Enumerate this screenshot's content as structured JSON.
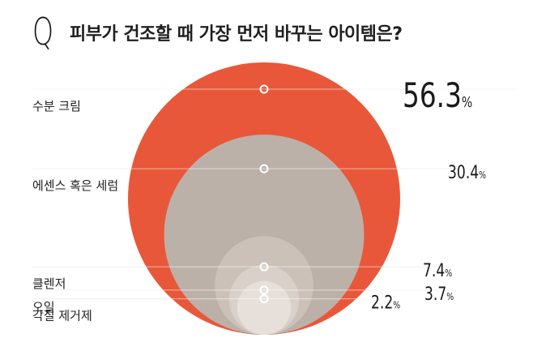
{
  "header": {
    "q_letter": "Q",
    "question": "피부가 건조할 때 가장 먼저 바꾸는 아이템은?"
  },
  "chart_data": {
    "type": "bubble",
    "categories": [
      "수분 크림",
      "에센스 혹은 세럼",
      "클렌저",
      "오일",
      "각질 제거제"
    ],
    "values": [
      56.3,
      30.4,
      7.4,
      3.7,
      2.2
    ],
    "value_suffix": "%",
    "colors": [
      "#e9573a",
      "#bcb1a8",
      "#cbc1b9",
      "#d9d0c9",
      "#e7e0da"
    ]
  }
}
